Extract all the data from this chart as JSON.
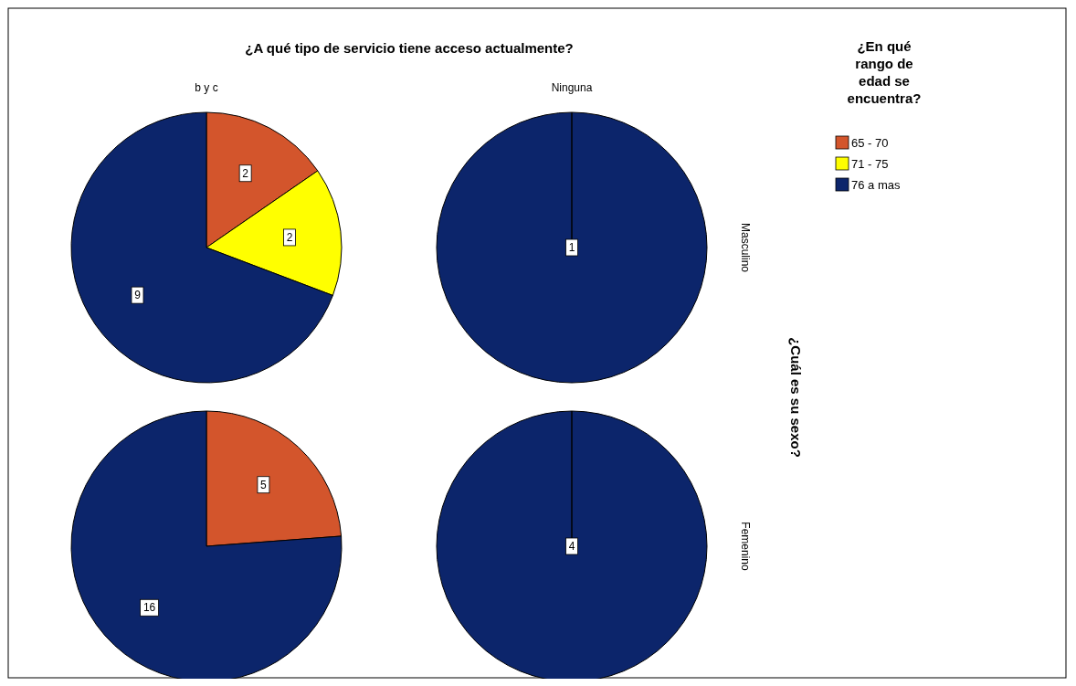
{
  "chart_data": [
    {
      "type": "pie",
      "title": "¿A qué tipo de servicio tiene acceso actualmente?",
      "subtitle": "b y c",
      "categories": [
        null,
        null,
        null
      ],
      "values": [
        2,
        2,
        9
      ],
      "colors": [
        "#d3552c",
        "#ffff00",
        "#0c256b"
      ],
      "value_labels": [
        "2",
        "2",
        "9"
      ]
    },
    {
      "type": "pie",
      "subtitle": "Ninguna",
      "y2label": "Masculino",
      "legend_title": "¿En qué rango de edad se encuentra?",
      "legend": "right",
      "categories": [
        "65 - 70",
        "71 - 75",
        "76 a mas"
      ],
      "values": [
        0,
        0,
        1
      ],
      "colors": [
        "#d3552c",
        "#ffff00",
        "#0c256b"
      ],
      "value_labels": [
        null,
        null,
        "1"
      ]
    },
    {
      "type": "pie",
      "categories": [
        null,
        null
      ],
      "values": [
        5,
        16
      ],
      "colors": [
        "#d3552c",
        "#0c256b"
      ],
      "value_labels": [
        "5",
        "16"
      ]
    },
    {
      "type": "pie",
      "y2label": "Femenino",
      "annotations": [
        "¿Cuál es su sexo?"
      ],
      "categories": [
        null
      ],
      "values": [
        4
      ],
      "colors": [
        "#0c256b"
      ],
      "value_labels": [
        "4"
      ]
    }
  ]
}
